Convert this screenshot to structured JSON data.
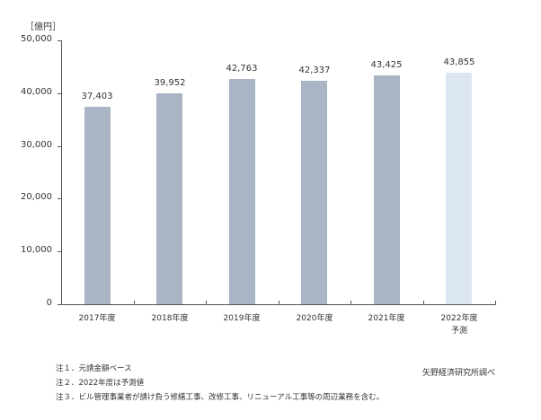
{
  "chart_data": {
    "type": "bar",
    "title": "",
    "unit_label": "［億円］",
    "xlabel": "",
    "ylabel": "億円",
    "ylim": [
      0,
      50000
    ],
    "grid": false,
    "legend": null,
    "categories": [
      "2017年度",
      "2018年度",
      "2019年度",
      "2020年度",
      "2021年度",
      "2022年度"
    ],
    "category_sublabels": [
      "",
      "",
      "",
      "",
      "",
      "予測"
    ],
    "values": [
      37403,
      39952,
      42763,
      42337,
      43425,
      43855
    ],
    "value_labels": [
      "37,403",
      "39,952",
      "42,763",
      "42,337",
      "43,425",
      "43,855"
    ],
    "yticks": [
      0,
      10000,
      20000,
      30000,
      40000,
      50000
    ],
    "ytick_labels": [
      "0",
      "10,000",
      "20,000",
      "30,000",
      "40,000",
      "50,000"
    ],
    "bar_colors": [
      "#a9b4c5",
      "#a9b4c5",
      "#a9b4c5",
      "#a9b4c5",
      "#a9b4c5",
      "#dce6f2"
    ],
    "forecast_index": 5
  },
  "notes": [
    "注１．元請金額ベース",
    "注２．2022年度は予測値",
    "注３．ビル管理事業者が請け負う修繕工事、改修工事、リニューアル工事等の周辺業務を含む。"
  ],
  "source": "矢野経済研究所調べ",
  "colors": {
    "actual_bar": "#a9b4c5",
    "forecast_bar": "#dce6f2",
    "axis": "#555555",
    "text": "#333333"
  }
}
